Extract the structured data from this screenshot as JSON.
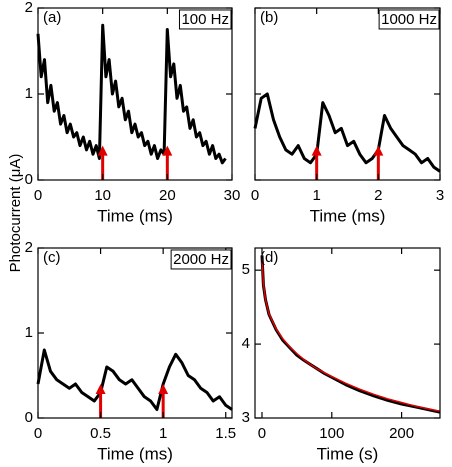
{
  "ylabel": "Photocurrent (μA)",
  "chart_data": [
    {
      "type": "line",
      "panel_label": "(a)",
      "box_label": "100 Hz",
      "xlabel": "Time (ms)",
      "xlim": [
        0,
        30
      ],
      "xticks": [
        0,
        10,
        20,
        30
      ],
      "ylim": [
        0,
        2
      ],
      "yticks": [
        0,
        1,
        2
      ],
      "ytick_labels": true,
      "arrows": [
        10,
        20
      ],
      "arrow_color": "#e00000",
      "x": [
        0,
        0.5,
        1,
        1.5,
        2,
        2.5,
        3,
        3.5,
        4,
        4.5,
        5,
        5.5,
        6,
        6.5,
        7,
        7.5,
        8,
        8.5,
        9,
        9.5,
        10,
        10.5,
        11,
        11.5,
        12,
        12.5,
        13,
        13.5,
        14,
        14.5,
        15,
        15.5,
        16,
        16.5,
        17,
        17.5,
        18,
        18.5,
        19,
        19.5,
        20,
        20.5,
        21,
        21.5,
        22,
        22.5,
        23,
        23.5,
        24,
        24.5,
        25,
        25.5,
        26,
        26.5,
        27,
        27.5,
        28,
        28.5,
        29
      ],
      "series": [
        {
          "color": "#000000",
          "values": [
            1.7,
            1.2,
            1.4,
            0.9,
            1.1,
            0.8,
            0.9,
            0.65,
            0.75,
            0.55,
            0.65,
            0.5,
            0.55,
            0.4,
            0.5,
            0.35,
            0.45,
            0.3,
            0.4,
            0.25,
            1.8,
            1.2,
            1.4,
            1.0,
            1.15,
            0.85,
            0.95,
            0.7,
            0.8,
            0.55,
            0.65,
            0.5,
            0.55,
            0.4,
            0.45,
            0.3,
            0.4,
            0.25,
            0.35,
            0.3,
            1.75,
            1.2,
            1.35,
            0.95,
            1.1,
            0.8,
            0.85,
            0.6,
            0.7,
            0.5,
            0.55,
            0.4,
            0.45,
            0.3,
            0.4,
            0.25,
            0.3,
            0.2,
            0.25
          ]
        }
      ]
    },
    {
      "type": "line",
      "panel_label": "(b)",
      "box_label": "1000 Hz",
      "xlabel": "Time (ms)",
      "xlim": [
        0,
        3
      ],
      "xticks": [
        0,
        1,
        2,
        3
      ],
      "ylim": [
        0,
        2
      ],
      "yticks": [
        0,
        1,
        2
      ],
      "ytick_labels": false,
      "arrows": [
        1,
        2
      ],
      "arrow_color": "#e00000",
      "x": [
        0,
        0.1,
        0.2,
        0.3,
        0.4,
        0.5,
        0.6,
        0.7,
        0.8,
        0.9,
        1.0,
        1.1,
        1.2,
        1.3,
        1.4,
        1.5,
        1.6,
        1.7,
        1.8,
        1.9,
        2.0,
        2.1,
        2.2,
        2.3,
        2.4,
        2.5,
        2.6,
        2.7,
        2.8,
        2.9,
        3.0
      ],
      "series": [
        {
          "color": "#000000",
          "values": [
            0.6,
            0.95,
            1.0,
            0.7,
            0.5,
            0.35,
            0.3,
            0.4,
            0.25,
            0.2,
            0.3,
            0.9,
            0.75,
            0.55,
            0.6,
            0.4,
            0.45,
            0.3,
            0.2,
            0.25,
            0.35,
            0.75,
            0.6,
            0.5,
            0.4,
            0.35,
            0.3,
            0.2,
            0.25,
            0.15,
            0.1
          ]
        }
      ]
    },
    {
      "type": "line",
      "panel_label": "(c)",
      "box_label": "2000 Hz",
      "xlabel": "Time (ms)",
      "xlim": [
        0,
        1.55
      ],
      "xticks": [
        0,
        0.5,
        1,
        1.5
      ],
      "ylim": [
        0,
        2
      ],
      "yticks": [
        0,
        1,
        2
      ],
      "ytick_labels": true,
      "arrows": [
        0.5,
        1
      ],
      "arrow_color": "#e00000",
      "x": [
        0,
        0.05,
        0.1,
        0.15,
        0.2,
        0.25,
        0.3,
        0.35,
        0.4,
        0.45,
        0.5,
        0.55,
        0.6,
        0.65,
        0.7,
        0.75,
        0.8,
        0.85,
        0.9,
        0.95,
        1.0,
        1.05,
        1.1,
        1.15,
        1.2,
        1.25,
        1.3,
        1.35,
        1.4,
        1.45,
        1.5,
        1.55
      ],
      "series": [
        {
          "color": "#000000",
          "values": [
            0.4,
            0.8,
            0.55,
            0.45,
            0.4,
            0.35,
            0.4,
            0.3,
            0.25,
            0.2,
            0.3,
            0.6,
            0.55,
            0.45,
            0.4,
            0.45,
            0.35,
            0.25,
            0.2,
            0.1,
            0.4,
            0.6,
            0.75,
            0.65,
            0.5,
            0.45,
            0.35,
            0.3,
            0.2,
            0.25,
            0.15,
            0.1
          ]
        }
      ]
    },
    {
      "type": "line",
      "panel_label": "(d)",
      "xlabel": "Time (s)",
      "xlim": [
        -10,
        255
      ],
      "xticks": [
        0,
        100,
        200
      ],
      "ylim": [
        3,
        5.3
      ],
      "yticks": [
        3,
        4,
        5
      ],
      "ytick_labels": true,
      "x": [
        0,
        2,
        5,
        10,
        20,
        30,
        40,
        50,
        60,
        70,
        80,
        90,
        100,
        120,
        140,
        160,
        180,
        200,
        220,
        240,
        255
      ],
      "series": [
        {
          "color": "#000000",
          "values": [
            5.2,
            4.8,
            4.6,
            4.4,
            4.2,
            4.05,
            3.95,
            3.85,
            3.78,
            3.72,
            3.66,
            3.6,
            3.55,
            3.45,
            3.37,
            3.3,
            3.24,
            3.19,
            3.15,
            3.11,
            3.08
          ]
        },
        {
          "color": "#e00000",
          "values": [
            5.15,
            4.82,
            4.6,
            4.41,
            4.21,
            4.07,
            3.96,
            3.87,
            3.79,
            3.72,
            3.66,
            3.61,
            3.56,
            3.47,
            3.39,
            3.32,
            3.26,
            3.21,
            3.16,
            3.12,
            3.09
          ]
        }
      ]
    }
  ]
}
